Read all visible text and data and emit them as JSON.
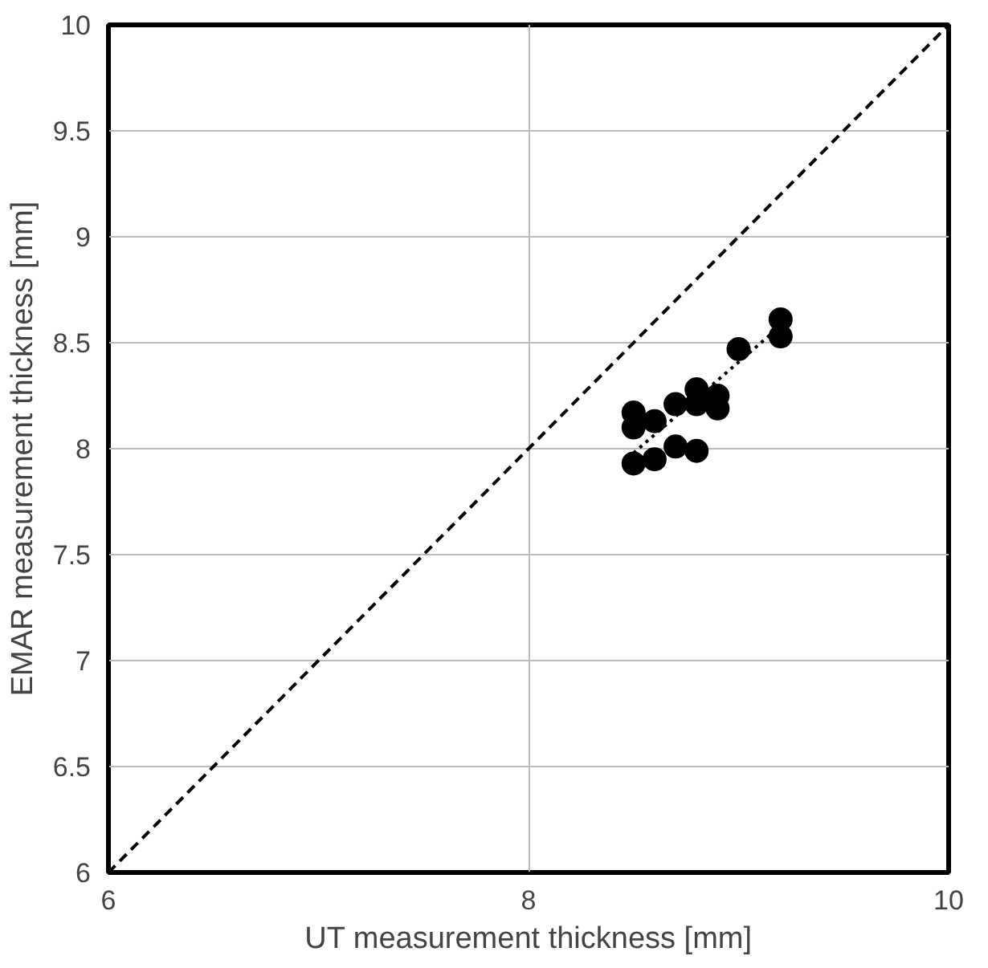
{
  "chart_data": {
    "type": "scatter",
    "xlabel": "UT measurement thickness [mm]",
    "ylabel": "EMAR measurement thickness [mm]",
    "xlim": [
      6,
      10
    ],
    "ylim": [
      6,
      10
    ],
    "xticks": [
      6,
      8,
      10
    ],
    "yticks": [
      6,
      6.5,
      7,
      7.5,
      8,
      8.5,
      9,
      9.5,
      10
    ],
    "grid": true,
    "series": [
      {
        "marker": "circle",
        "color": "#000000",
        "x": [
          8.5,
          8.5,
          8.5,
          8.6,
          8.6,
          8.7,
          8.7,
          8.8,
          8.8,
          8.8,
          8.9,
          8.9,
          9.0,
          9.2,
          9.2
        ],
        "values": [
          7.93,
          8.1,
          8.17,
          7.95,
          8.13,
          8.01,
          8.21,
          7.99,
          8.21,
          8.28,
          8.19,
          8.25,
          8.47,
          8.53,
          8.61
        ]
      },
      {
        "type": "line",
        "line_style": "dotted",
        "color": "#000000",
        "x": [
          8.5,
          9.2
        ],
        "values": [
          7.98,
          8.58
        ]
      },
      {
        "type": "line",
        "line_style": "dashed",
        "color": "#000000",
        "x": [
          6,
          10
        ],
        "values": [
          6,
          10
        ]
      }
    ]
  }
}
